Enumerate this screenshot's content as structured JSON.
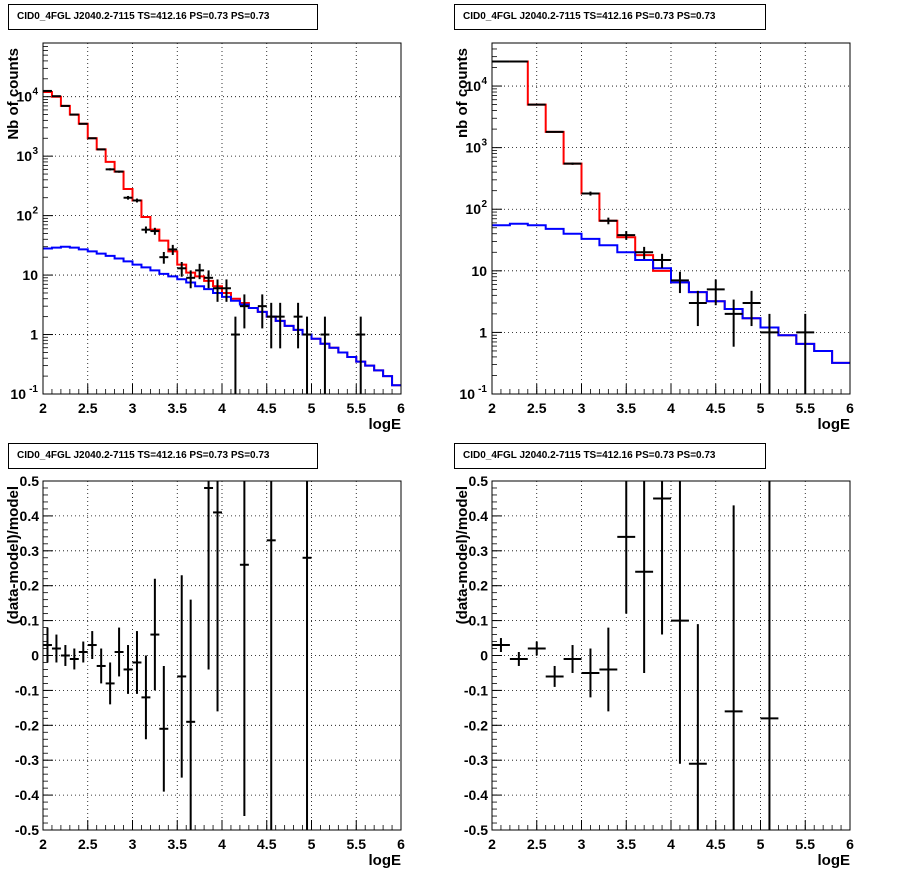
{
  "chart_data": [
    {
      "type": "step",
      "title": "CID0_4FGL J2040.2-7115 TS=412.16 PS=0.73 PS=0.73",
      "xlabel": "logE",
      "ylabel": "Nb of counts",
      "xlim": [
        2,
        6
      ],
      "ylim": [
        0.1,
        80000
      ],
      "yscale": "log",
      "grid": true,
      "x_ticks": [
        "2",
        "2.5",
        "3",
        "3.5",
        "4",
        "4.5",
        "5",
        "5.5",
        "6"
      ],
      "y_ticks": [
        {
          "v": 0.1,
          "l": "10",
          "e": "-1"
        },
        {
          "v": 1,
          "l": "1",
          "e": ""
        },
        {
          "v": 10,
          "l": "10",
          "e": ""
        },
        {
          "v": 100,
          "l": "10",
          "e": "2"
        },
        {
          "v": 1000,
          "l": "10",
          "e": "3"
        },
        {
          "v": 10000,
          "l": "10",
          "e": "4"
        }
      ],
      "bin_edges": [
        2.0,
        2.1,
        2.2,
        2.3,
        2.4,
        2.5,
        2.6,
        2.7,
        2.8,
        2.9,
        3.0,
        3.1,
        3.2,
        3.3,
        3.4,
        3.5,
        3.6,
        3.7,
        3.8,
        3.9,
        4.0,
        4.1,
        4.2,
        4.3,
        4.4,
        4.5,
        4.6,
        4.7,
        4.8,
        4.9,
        5.0,
        5.1,
        5.2,
        5.3,
        5.4,
        5.5,
        5.6,
        5.7,
        5.8,
        5.9,
        6.0
      ],
      "series": [
        {
          "name": "",
          "color": "#ff0000",
          "style": "step",
          "values": [
            12000,
            10000,
            7000,
            5000,
            3500,
            2000,
            1300,
            800,
            550,
            280,
            180,
            95,
            58,
            38,
            25,
            15,
            11,
            9.5,
            8,
            6.5,
            5,
            4,
            3.4,
            2.8,
            2.4,
            2.0,
            1.7,
            1.4,
            1.2,
            1.0,
            0.85,
            0.7,
            0.6,
            0.5,
            0.42,
            0.35,
            0.3,
            0.25,
            0.2,
            0.14
          ]
        },
        {
          "name": "",
          "color": "#0000ff",
          "style": "step",
          "values": [
            28,
            29,
            30,
            29,
            27,
            25,
            23,
            21,
            19,
            17,
            15,
            13.5,
            12,
            10.5,
            9.5,
            8.5,
            7.5,
            6.5,
            5.8,
            5,
            4.3,
            3.7,
            3.2,
            2.8,
            2.4,
            2.0,
            1.7,
            1.4,
            1.2,
            1.0,
            0.85,
            0.7,
            0.6,
            0.5,
            0.42,
            0.35,
            0.3,
            0.25,
            0.2,
            0.14
          ]
        }
      ],
      "points": [
        {
          "x": 2.05,
          "y": 12500
        },
        {
          "x": 2.15,
          "y": 10200
        },
        {
          "x": 2.25,
          "y": 7000
        },
        {
          "x": 2.35,
          "y": 5000
        },
        {
          "x": 2.45,
          "y": 3500
        },
        {
          "x": 2.55,
          "y": 2000
        },
        {
          "x": 2.65,
          "y": 1300
        },
        {
          "x": 2.75,
          "y": 600
        },
        {
          "x": 2.85,
          "y": 550
        },
        {
          "x": 2.95,
          "y": 200
        },
        {
          "x": 3.05,
          "y": 180
        },
        {
          "x": 3.15,
          "y": 58
        },
        {
          "x": 3.25,
          "y": 55
        },
        {
          "x": 3.35,
          "y": 20
        },
        {
          "x": 3.45,
          "y": 27
        },
        {
          "x": 3.55,
          "y": 13
        },
        {
          "x": 3.65,
          "y": 9
        },
        {
          "x": 3.75,
          "y": 12
        },
        {
          "x": 3.85,
          "y": 9
        },
        {
          "x": 3.95,
          "y": 6
        },
        {
          "x": 4.05,
          "y": 6
        },
        {
          "x": 4.15,
          "y": 1
        },
        {
          "x": 4.25,
          "y": 3
        },
        {
          "x": 4.45,
          "y": 3
        },
        {
          "x": 4.55,
          "y": 2
        },
        {
          "x": 4.65,
          "y": 2
        },
        {
          "x": 4.85,
          "y": 2
        },
        {
          "x": 4.95,
          "y": 1
        },
        {
          "x": 5.15,
          "y": 1
        },
        {
          "x": 5.55,
          "y": 1
        }
      ]
    },
    {
      "type": "step",
      "title": "CID0_4FGL J2040.2-7115 TS=412.16 PS=0.73 PS=0.73",
      "xlabel": "logE",
      "ylabel": "nb of counts",
      "xlim": [
        2,
        6
      ],
      "ylim": [
        0.1,
        50000
      ],
      "yscale": "log",
      "grid": true,
      "x_ticks": [
        "2",
        "2.5",
        "3",
        "3.5",
        "4",
        "4.5",
        "5",
        "5.5",
        "6"
      ],
      "y_ticks": [
        {
          "v": 0.1,
          "l": "10",
          "e": "-1"
        },
        {
          "v": 1,
          "l": "1",
          "e": ""
        },
        {
          "v": 10,
          "l": "10",
          "e": ""
        },
        {
          "v": 100,
          "l": "10",
          "e": "2"
        },
        {
          "v": 1000,
          "l": "10",
          "e": "3"
        },
        {
          "v": 10000,
          "l": "10",
          "e": "4"
        }
      ],
      "bin_edges": [
        2.0,
        2.2,
        2.4,
        2.6,
        2.8,
        3.0,
        3.2,
        3.4,
        3.6,
        3.8,
        4.0,
        4.2,
        4.4,
        4.6,
        4.8,
        5.0,
        5.2,
        5.4,
        5.6,
        5.8,
        6.0
      ],
      "series": [
        {
          "name": "",
          "color": "#ff0000",
          "style": "step",
          "values": [
            25000,
            25000,
            5000,
            1800,
            550,
            180,
            65,
            35,
            18,
            10,
            6.5,
            4.5,
            3.2,
            2.4,
            1.7,
            1.2,
            0.9,
            0.65,
            0.5,
            0.32
          ]
        },
        {
          "name": "",
          "color": "#0000ff",
          "style": "step",
          "values": [
            55,
            58,
            55,
            48,
            40,
            33,
            26,
            20,
            15,
            11,
            6.5,
            4.5,
            3.2,
            2.4,
            1.7,
            1.2,
            0.9,
            0.65,
            0.5,
            0.32
          ]
        }
      ],
      "points": [
        {
          "x": 2.1,
          "y": 25000
        },
        {
          "x": 2.3,
          "y": 25000
        },
        {
          "x": 2.5,
          "y": 5000
        },
        {
          "x": 2.7,
          "y": 1800
        },
        {
          "x": 2.9,
          "y": 550
        },
        {
          "x": 3.1,
          "y": 180
        },
        {
          "x": 3.3,
          "y": 65
        },
        {
          "x": 3.5,
          "y": 38
        },
        {
          "x": 3.7,
          "y": 20
        },
        {
          "x": 3.9,
          "y": 15
        },
        {
          "x": 4.1,
          "y": 7
        },
        {
          "x": 4.3,
          "y": 3
        },
        {
          "x": 4.5,
          "y": 5
        },
        {
          "x": 4.7,
          "y": 2
        },
        {
          "x": 4.9,
          "y": 3
        },
        {
          "x": 5.1,
          "y": 1
        },
        {
          "x": 5.5,
          "y": 1
        }
      ]
    },
    {
      "type": "scatter",
      "title": "CID0_4FGL J2040.2-7115 TS=412.16 PS=0.73 PS=0.73",
      "xlabel": "logE",
      "ylabel": "(data-model)/model",
      "xlim": [
        2,
        6
      ],
      "ylim": [
        -0.5,
        0.5
      ],
      "yscale": "linear",
      "grid": true,
      "x_ticks": [
        "2",
        "2.5",
        "3",
        "3.5",
        "4",
        "4.5",
        "5",
        "5.5",
        "6"
      ],
      "y_ticks": [
        "-0.5",
        "-0.4",
        "-0.3",
        "-0.2",
        "-0.1",
        "0",
        "0.1",
        "0.2",
        "0.3",
        "0.4",
        "0.5"
      ],
      "bin_half_width": 0.05,
      "points": [
        {
          "x": 2.05,
          "y": 0.03,
          "err": 0.05
        },
        {
          "x": 2.15,
          "y": 0.02,
          "err": 0.04
        },
        {
          "x": 2.25,
          "y": 0.0,
          "err": 0.03
        },
        {
          "x": 2.35,
          "y": -0.01,
          "err": 0.03
        },
        {
          "x": 2.45,
          "y": 0.01,
          "err": 0.03
        },
        {
          "x": 2.55,
          "y": 0.03,
          "err": 0.04
        },
        {
          "x": 2.65,
          "y": -0.03,
          "err": 0.05
        },
        {
          "x": 2.75,
          "y": -0.08,
          "err": 0.06
        },
        {
          "x": 2.85,
          "y": 0.01,
          "err": 0.07
        },
        {
          "x": 2.95,
          "y": -0.04,
          "err": 0.07
        },
        {
          "x": 3.05,
          "y": -0.02,
          "err": 0.09
        },
        {
          "x": 3.15,
          "y": -0.12,
          "err": 0.12
        },
        {
          "x": 3.25,
          "y": 0.06,
          "err": 0.16
        },
        {
          "x": 3.35,
          "y": -0.21,
          "err": 0.18
        },
        {
          "x": 3.55,
          "y": -0.06,
          "err": 0.29
        },
        {
          "x": 3.65,
          "y": -0.19,
          "err": 0.35
        },
        {
          "x": 3.85,
          "y": 0.48,
          "err": 0.52
        },
        {
          "x": 3.95,
          "y": 0.41,
          "err": 0.57
        },
        {
          "x": 4.25,
          "y": 0.26,
          "err": 0.72
        },
        {
          "x": 4.55,
          "y": 0.33,
          "err": 1.0
        },
        {
          "x": 4.95,
          "y": 0.28,
          "err": 1.0
        }
      ]
    },
    {
      "type": "scatter",
      "title": "CID0_4FGL J2040.2-7115 TS=412.16 PS=0.73 PS=0.73",
      "xlabel": "logE",
      "ylabel": "(data-model)/model",
      "xlim": [
        2,
        6
      ],
      "ylim": [
        -0.5,
        0.5
      ],
      "yscale": "linear",
      "grid": true,
      "x_ticks": [
        "2",
        "2.5",
        "3",
        "3.5",
        "4",
        "4.5",
        "5",
        "5.5",
        "6"
      ],
      "y_ticks": [
        "-0.5",
        "-0.4",
        "-0.3",
        "-0.2",
        "-0.1",
        "0",
        "0.1",
        "0.2",
        "0.3",
        "0.4",
        "0.5"
      ],
      "bin_half_width": 0.1,
      "points": [
        {
          "x": 2.1,
          "y": 0.03,
          "err": 0.02
        },
        {
          "x": 2.3,
          "y": -0.01,
          "err": 0.02
        },
        {
          "x": 2.5,
          "y": 0.02,
          "err": 0.02
        },
        {
          "x": 2.7,
          "y": -0.06,
          "err": 0.03
        },
        {
          "x": 2.9,
          "y": -0.01,
          "err": 0.04
        },
        {
          "x": 3.1,
          "y": -0.05,
          "err": 0.07
        },
        {
          "x": 3.3,
          "y": -0.04,
          "err": 0.12
        },
        {
          "x": 3.5,
          "y": 0.34,
          "err": 0.22
        },
        {
          "x": 3.7,
          "y": 0.24,
          "err": 0.29
        },
        {
          "x": 3.9,
          "y": 0.45,
          "err": 0.39
        },
        {
          "x": 4.1,
          "y": 0.1,
          "err": 0.41
        },
        {
          "x": 4.3,
          "y": -0.31,
          "err": 0.4
        },
        {
          "x": 4.7,
          "y": -0.16,
          "err": 0.59
        },
        {
          "x": 5.1,
          "y": -0.18,
          "err": 1.0
        }
      ]
    }
  ]
}
